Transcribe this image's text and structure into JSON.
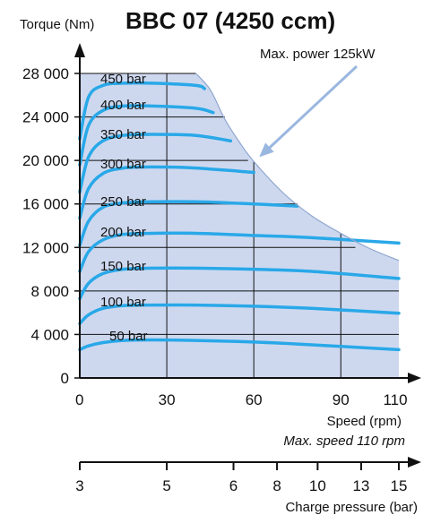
{
  "chart_data": {
    "type": "line",
    "title": "BBC 07 (4250 ccm)",
    "ylabel": "Torque (Nm)",
    "xlabel": "Speed (rpm)",
    "x_ticks": [
      "0",
      "30",
      "60",
      "90",
      "110"
    ],
    "x_tick_values": [
      0,
      30,
      60,
      90,
      110
    ],
    "y_ticks": [
      "0",
      "4 000",
      "8 000",
      "12 000",
      "16 000",
      "20 000",
      "24 000",
      "28 000"
    ],
    "y_tick_values": [
      0,
      4000,
      8000,
      12000,
      16000,
      20000,
      24000,
      28000
    ],
    "xlim": [
      0,
      110
    ],
    "ylim": [
      0,
      28000
    ],
    "grid": true,
    "series": [
      {
        "name": "50 bar",
        "x": [
          0,
          3,
          8,
          15,
          25,
          40,
          60,
          80,
          110
        ],
        "y": [
          2600,
          2950,
          3250,
          3450,
          3500,
          3450,
          3300,
          3050,
          2600
        ]
      },
      {
        "name": "100 bar",
        "x": [
          0,
          3,
          8,
          15,
          25,
          40,
          60,
          80,
          110
        ],
        "y": [
          5000,
          5800,
          6400,
          6650,
          6700,
          6700,
          6600,
          6400,
          5950
        ]
      },
      {
        "name": "150 bar",
        "x": [
          0,
          3,
          8,
          15,
          25,
          40,
          60,
          80,
          110
        ],
        "y": [
          7300,
          8700,
          9600,
          10000,
          10100,
          10100,
          10000,
          9800,
          9150
        ]
      },
      {
        "name": "200 bar",
        "x": [
          0,
          3,
          8,
          15,
          25,
          40,
          60,
          80,
          110
        ],
        "y": [
          9800,
          11600,
          12700,
          13200,
          13300,
          13300,
          13100,
          12900,
          12400
        ]
      },
      {
        "name": "250 bar",
        "x": [
          0,
          3,
          8,
          15,
          25,
          40,
          60,
          75
        ],
        "y": [
          12200,
          14400,
          15700,
          16100,
          16200,
          16200,
          16000,
          15800
        ]
      },
      {
        "name": "300 bar",
        "x": [
          0,
          3,
          8,
          15,
          25,
          40,
          60
        ],
        "y": [
          14700,
          17400,
          18800,
          19300,
          19400,
          19300,
          18900
        ]
      },
      {
        "name": "350 bar",
        "x": [
          0,
          3,
          8,
          15,
          25,
          40,
          52
        ],
        "y": [
          17100,
          20300,
          21800,
          22300,
          22400,
          22300,
          21800
        ]
      },
      {
        "name": "400 bar",
        "x": [
          0,
          3,
          8,
          15,
          25,
          40,
          46
        ],
        "y": [
          19600,
          23200,
          24600,
          25000,
          25000,
          24800,
          24400
        ]
      },
      {
        "name": "450 bar",
        "x": [
          0,
          3,
          8,
          15,
          25,
          40,
          43
        ],
        "y": [
          22000,
          25800,
          26900,
          27100,
          27100,
          26900,
          26600
        ]
      }
    ],
    "power_limit": {
      "label": "Max. power 125kW",
      "x": [
        40,
        45,
        50,
        55,
        60,
        70,
        80,
        90,
        100,
        110
      ],
      "y": [
        28000,
        26500,
        23800,
        21700,
        19900,
        17050,
        14900,
        13300,
        11900,
        10800
      ]
    },
    "reference_lines": {
      "horizontal": [
        {
          "y": 28000,
          "x_to": 40
        },
        {
          "y": 24000,
          "x_to": 50
        },
        {
          "y": 20000,
          "x_to": 58
        },
        {
          "y": 16000,
          "x_to": 75
        },
        {
          "y": 12000,
          "x_to": 95
        },
        {
          "y": 8000,
          "x_to": 110
        },
        {
          "y": 4000,
          "x_to": 110
        }
      ],
      "vertical": [
        {
          "x": 30,
          "y_to": 28000
        },
        {
          "x": 60,
          "y_to": 19900
        },
        {
          "x": 90,
          "y_to": 13300
        }
      ]
    },
    "annotation": "Max. speed 110 rpm",
    "secondary_axis": {
      "label": "Charge pressure (bar)",
      "ticks": [
        "3",
        "5",
        "6",
        "8",
        "10",
        "13",
        "15"
      ],
      "tick_speed_equiv": [
        0,
        30,
        53,
        68,
        82,
        97,
        110
      ]
    },
    "colors": {
      "plot_background": "#cdd8ef",
      "curve": "#29a8e8",
      "axis": "#111111",
      "grid": "#111111"
    }
  }
}
